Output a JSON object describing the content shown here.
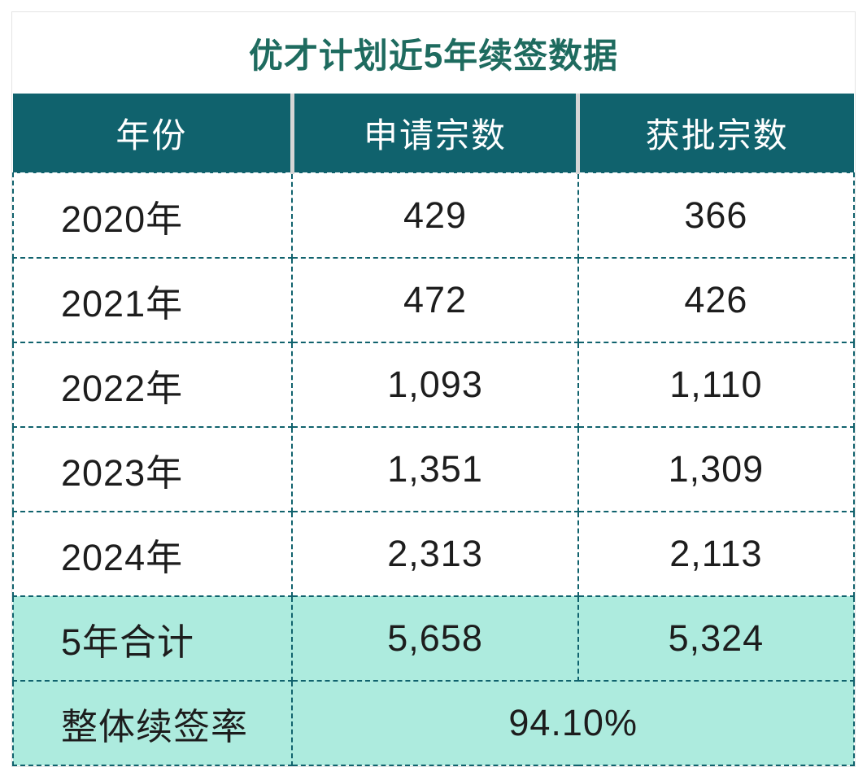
{
  "title": "优才计划近5年续签数据",
  "colors": {
    "title_text": "#1E6B5F",
    "header_bg": "#10626D",
    "header_text": "#FFFFFF",
    "highlight_bg": "#ADEBDE",
    "dashed_border": "#10626D",
    "body_text": "#1D1D1D",
    "header_separator": "#D6D6D6"
  },
  "table": {
    "headers": [
      "年份",
      "申请宗数",
      "获批宗数"
    ],
    "rows": [
      {
        "year": "2020年",
        "applications": "429",
        "approved": "366"
      },
      {
        "year": "2021年",
        "applications": "472",
        "approved": "426"
      },
      {
        "year": "2022年",
        "applications": "1,093",
        "approved": "1,110"
      },
      {
        "year": "2023年",
        "applications": "1,351",
        "approved": "1,309"
      },
      {
        "year": "2024年",
        "applications": "2,313",
        "approved": "2,113"
      }
    ],
    "total_row": {
      "label": "5年合计",
      "applications": "5,658",
      "approved": "5,324"
    },
    "rate_row": {
      "label": "整体续签率",
      "value": "94.10%"
    }
  },
  "chart_data": {
    "type": "table",
    "title": "优才计划近5年续签数据",
    "columns": [
      "年份",
      "申请宗数",
      "获批宗数"
    ],
    "rows": [
      [
        "2020年",
        429,
        366
      ],
      [
        "2021年",
        472,
        426
      ],
      [
        "2022年",
        1093,
        1110
      ],
      [
        "2023年",
        1351,
        1309
      ],
      [
        "2024年",
        2313,
        2113
      ]
    ],
    "totals": {
      "label": "5年合计",
      "applications": 5658,
      "approved": 5324
    },
    "overall_renewal_rate": "94.10%"
  }
}
